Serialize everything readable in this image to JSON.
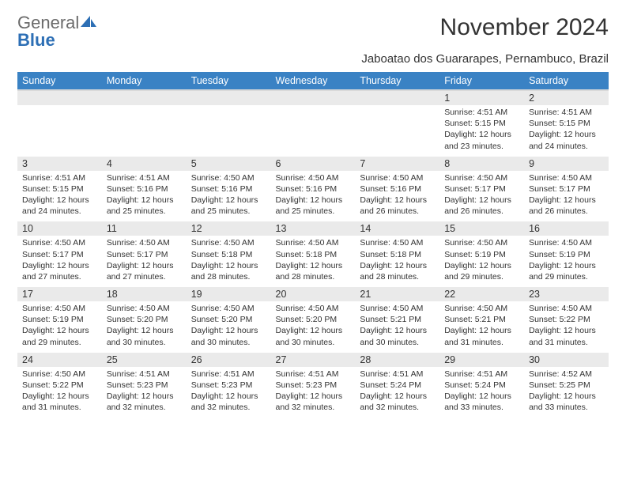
{
  "logo": {
    "text_gray": "General",
    "text_blue": "Blue"
  },
  "title": "November 2024",
  "location": "Jaboatao dos Guararapes, Pernambuco, Brazil",
  "colors": {
    "header_bg": "#3a82c4",
    "header_text": "#ffffff",
    "daynum_bg": "#eaeaea",
    "body_bg": "#ffffff",
    "text": "#333333",
    "logo_gray": "#6b6b6b",
    "logo_blue": "#2d6fb5"
  },
  "day_headers": [
    "Sunday",
    "Monday",
    "Tuesday",
    "Wednesday",
    "Thursday",
    "Friday",
    "Saturday"
  ],
  "weeks": [
    {
      "nums": [
        "",
        "",
        "",
        "",
        "",
        "1",
        "2"
      ],
      "cells": [
        null,
        null,
        null,
        null,
        null,
        {
          "sunrise": "Sunrise: 4:51 AM",
          "sunset": "Sunset: 5:15 PM",
          "d1": "Daylight: 12 hours",
          "d2": "and 23 minutes."
        },
        {
          "sunrise": "Sunrise: 4:51 AM",
          "sunset": "Sunset: 5:15 PM",
          "d1": "Daylight: 12 hours",
          "d2": "and 24 minutes."
        }
      ]
    },
    {
      "nums": [
        "3",
        "4",
        "5",
        "6",
        "7",
        "8",
        "9"
      ],
      "cells": [
        {
          "sunrise": "Sunrise: 4:51 AM",
          "sunset": "Sunset: 5:15 PM",
          "d1": "Daylight: 12 hours",
          "d2": "and 24 minutes."
        },
        {
          "sunrise": "Sunrise: 4:51 AM",
          "sunset": "Sunset: 5:16 PM",
          "d1": "Daylight: 12 hours",
          "d2": "and 25 minutes."
        },
        {
          "sunrise": "Sunrise: 4:50 AM",
          "sunset": "Sunset: 5:16 PM",
          "d1": "Daylight: 12 hours",
          "d2": "and 25 minutes."
        },
        {
          "sunrise": "Sunrise: 4:50 AM",
          "sunset": "Sunset: 5:16 PM",
          "d1": "Daylight: 12 hours",
          "d2": "and 25 minutes."
        },
        {
          "sunrise": "Sunrise: 4:50 AM",
          "sunset": "Sunset: 5:16 PM",
          "d1": "Daylight: 12 hours",
          "d2": "and 26 minutes."
        },
        {
          "sunrise": "Sunrise: 4:50 AM",
          "sunset": "Sunset: 5:17 PM",
          "d1": "Daylight: 12 hours",
          "d2": "and 26 minutes."
        },
        {
          "sunrise": "Sunrise: 4:50 AM",
          "sunset": "Sunset: 5:17 PM",
          "d1": "Daylight: 12 hours",
          "d2": "and 26 minutes."
        }
      ]
    },
    {
      "nums": [
        "10",
        "11",
        "12",
        "13",
        "14",
        "15",
        "16"
      ],
      "cells": [
        {
          "sunrise": "Sunrise: 4:50 AM",
          "sunset": "Sunset: 5:17 PM",
          "d1": "Daylight: 12 hours",
          "d2": "and 27 minutes."
        },
        {
          "sunrise": "Sunrise: 4:50 AM",
          "sunset": "Sunset: 5:17 PM",
          "d1": "Daylight: 12 hours",
          "d2": "and 27 minutes."
        },
        {
          "sunrise": "Sunrise: 4:50 AM",
          "sunset": "Sunset: 5:18 PM",
          "d1": "Daylight: 12 hours",
          "d2": "and 28 minutes."
        },
        {
          "sunrise": "Sunrise: 4:50 AM",
          "sunset": "Sunset: 5:18 PM",
          "d1": "Daylight: 12 hours",
          "d2": "and 28 minutes."
        },
        {
          "sunrise": "Sunrise: 4:50 AM",
          "sunset": "Sunset: 5:18 PM",
          "d1": "Daylight: 12 hours",
          "d2": "and 28 minutes."
        },
        {
          "sunrise": "Sunrise: 4:50 AM",
          "sunset": "Sunset: 5:19 PM",
          "d1": "Daylight: 12 hours",
          "d2": "and 29 minutes."
        },
        {
          "sunrise": "Sunrise: 4:50 AM",
          "sunset": "Sunset: 5:19 PM",
          "d1": "Daylight: 12 hours",
          "d2": "and 29 minutes."
        }
      ]
    },
    {
      "nums": [
        "17",
        "18",
        "19",
        "20",
        "21",
        "22",
        "23"
      ],
      "cells": [
        {
          "sunrise": "Sunrise: 4:50 AM",
          "sunset": "Sunset: 5:19 PM",
          "d1": "Daylight: 12 hours",
          "d2": "and 29 minutes."
        },
        {
          "sunrise": "Sunrise: 4:50 AM",
          "sunset": "Sunset: 5:20 PM",
          "d1": "Daylight: 12 hours",
          "d2": "and 30 minutes."
        },
        {
          "sunrise": "Sunrise: 4:50 AM",
          "sunset": "Sunset: 5:20 PM",
          "d1": "Daylight: 12 hours",
          "d2": "and 30 minutes."
        },
        {
          "sunrise": "Sunrise: 4:50 AM",
          "sunset": "Sunset: 5:20 PM",
          "d1": "Daylight: 12 hours",
          "d2": "and 30 minutes."
        },
        {
          "sunrise": "Sunrise: 4:50 AM",
          "sunset": "Sunset: 5:21 PM",
          "d1": "Daylight: 12 hours",
          "d2": "and 30 minutes."
        },
        {
          "sunrise": "Sunrise: 4:50 AM",
          "sunset": "Sunset: 5:21 PM",
          "d1": "Daylight: 12 hours",
          "d2": "and 31 minutes."
        },
        {
          "sunrise": "Sunrise: 4:50 AM",
          "sunset": "Sunset: 5:22 PM",
          "d1": "Daylight: 12 hours",
          "d2": "and 31 minutes."
        }
      ]
    },
    {
      "nums": [
        "24",
        "25",
        "26",
        "27",
        "28",
        "29",
        "30"
      ],
      "cells": [
        {
          "sunrise": "Sunrise: 4:50 AM",
          "sunset": "Sunset: 5:22 PM",
          "d1": "Daylight: 12 hours",
          "d2": "and 31 minutes."
        },
        {
          "sunrise": "Sunrise: 4:51 AM",
          "sunset": "Sunset: 5:23 PM",
          "d1": "Daylight: 12 hours",
          "d2": "and 32 minutes."
        },
        {
          "sunrise": "Sunrise: 4:51 AM",
          "sunset": "Sunset: 5:23 PM",
          "d1": "Daylight: 12 hours",
          "d2": "and 32 minutes."
        },
        {
          "sunrise": "Sunrise: 4:51 AM",
          "sunset": "Sunset: 5:23 PM",
          "d1": "Daylight: 12 hours",
          "d2": "and 32 minutes."
        },
        {
          "sunrise": "Sunrise: 4:51 AM",
          "sunset": "Sunset: 5:24 PM",
          "d1": "Daylight: 12 hours",
          "d2": "and 32 minutes."
        },
        {
          "sunrise": "Sunrise: 4:51 AM",
          "sunset": "Sunset: 5:24 PM",
          "d1": "Daylight: 12 hours",
          "d2": "and 33 minutes."
        },
        {
          "sunrise": "Sunrise: 4:52 AM",
          "sunset": "Sunset: 5:25 PM",
          "d1": "Daylight: 12 hours",
          "d2": "and 33 minutes."
        }
      ]
    }
  ]
}
